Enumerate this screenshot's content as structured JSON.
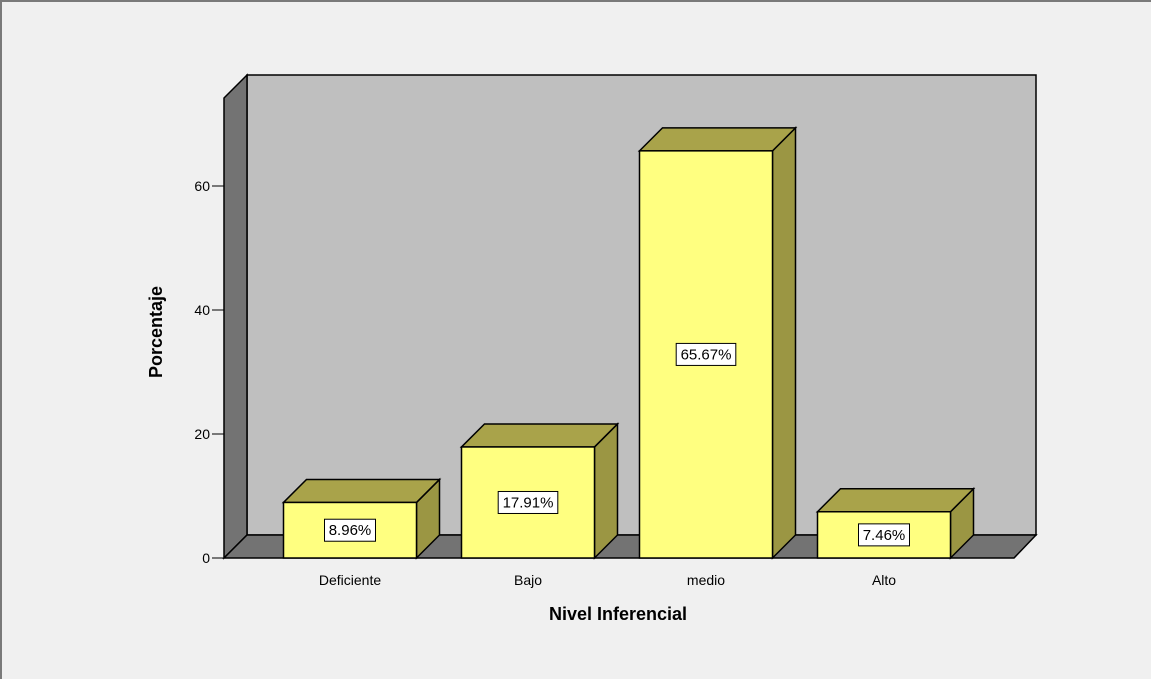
{
  "chart_data": {
    "type": "bar",
    "title": "",
    "xlabel": "Nivel Inferencial",
    "ylabel": "Porcentaje",
    "categories": [
      "Deficiente",
      "Bajo",
      "medio",
      "Alto"
    ],
    "values": [
      8.96,
      17.91,
      65.67,
      7.46
    ],
    "data_labels": [
      "8.96%",
      "17.91%",
      "65.67%",
      "7.46%"
    ],
    "yticks": [
      0,
      20,
      40,
      60
    ],
    "ylim": [
      0,
      70
    ],
    "grid": false,
    "legend": "none",
    "style": "3d",
    "colors": {
      "bar_front": "#ffff80",
      "bar_side": "#9b9643",
      "bar_top": "#a9a34a",
      "back_wall": "#bfbfbf",
      "side_wall": "#737373",
      "floor": "#737373"
    }
  }
}
